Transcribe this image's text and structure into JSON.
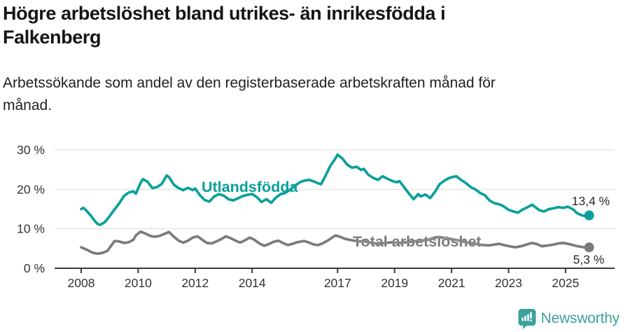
{
  "header": {
    "title": "Högre arbetslöshet bland utrikes- än inrikesfödda i\nFalkenberg",
    "subtitle": "Arbetssökande som andel av den registerbaserade arbetskraften månad för\nmånad."
  },
  "branding": {
    "logo_text": "Newsworthy",
    "logo_color": "#3ba29c"
  },
  "chart_data": {
    "type": "line",
    "title": "Högre arbetslöshet bland utrikes- än inrikesfödda i Falkenberg",
    "subtitle": "Arbetssökande som andel av den registerbaserade arbetskraften månad för månad.",
    "x_unit": "decimal_year_monthly",
    "xlim": [
      2007.1,
      2026.7
    ],
    "ylim": [
      0,
      30
    ],
    "grid": "horizontal",
    "legend_position": "inline-labels",
    "yticks": [
      {
        "value": 0,
        "label": "0 %"
      },
      {
        "value": 10,
        "label": "10 %"
      },
      {
        "value": 20,
        "label": "20 %"
      },
      {
        "value": 30,
        "label": "30 %"
      }
    ],
    "xticks": [
      {
        "value": 2008,
        "label": "2008"
      },
      {
        "value": 2010,
        "label": "2010"
      },
      {
        "value": 2012,
        "label": "2012"
      },
      {
        "value": 2014,
        "label": "2014"
      },
      {
        "value": 2017,
        "label": "2017"
      },
      {
        "value": 2019,
        "label": "2019"
      },
      {
        "value": 2021,
        "label": "2021"
      },
      {
        "value": 2023,
        "label": "2023"
      },
      {
        "value": 2025,
        "label": "2025"
      }
    ],
    "axis_color": "#3b3b3b",
    "grid_color": "#dcdcdc",
    "tick_text_color": "#333333",
    "annotation_text_color": "#2a2a2a",
    "series": [
      {
        "name": "Utlandsfödda",
        "color": "#0ba09a",
        "end_label": "13,4 %",
        "last_value": 13.4,
        "points": [
          [
            2008.0,
            15.0
          ],
          [
            2008.08,
            15.3
          ],
          [
            2008.17,
            14.7
          ],
          [
            2008.33,
            13.4
          ],
          [
            2008.5,
            11.8
          ],
          [
            2008.58,
            11.2
          ],
          [
            2008.67,
            11.0
          ],
          [
            2008.83,
            11.7
          ],
          [
            2009.0,
            13.2
          ],
          [
            2009.17,
            14.9
          ],
          [
            2009.33,
            16.4
          ],
          [
            2009.5,
            18.3
          ],
          [
            2009.67,
            19.2
          ],
          [
            2009.83,
            19.5
          ],
          [
            2009.92,
            18.9
          ],
          [
            2010.08,
            21.6
          ],
          [
            2010.17,
            22.6
          ],
          [
            2010.33,
            21.9
          ],
          [
            2010.5,
            20.3
          ],
          [
            2010.67,
            20.6
          ],
          [
            2010.83,
            21.4
          ],
          [
            2011.0,
            23.5
          ],
          [
            2011.08,
            23.1
          ],
          [
            2011.25,
            21.2
          ],
          [
            2011.42,
            20.3
          ],
          [
            2011.58,
            19.8
          ],
          [
            2011.75,
            20.4
          ],
          [
            2011.92,
            19.8
          ],
          [
            2012.0,
            20.2
          ],
          [
            2012.17,
            18.5
          ],
          [
            2012.33,
            17.3
          ],
          [
            2012.5,
            16.9
          ],
          [
            2012.67,
            18.2
          ],
          [
            2012.83,
            18.8
          ],
          [
            2013.0,
            18.4
          ],
          [
            2013.17,
            17.5
          ],
          [
            2013.33,
            17.2
          ],
          [
            2013.5,
            17.7
          ],
          [
            2013.67,
            18.3
          ],
          [
            2013.83,
            18.6
          ],
          [
            2014.0,
            18.8
          ],
          [
            2014.17,
            18.0
          ],
          [
            2014.33,
            16.8
          ],
          [
            2014.5,
            17.5
          ],
          [
            2014.67,
            16.6
          ],
          [
            2014.83,
            17.9
          ],
          [
            2015.0,
            18.8
          ],
          [
            2015.17,
            19.1
          ],
          [
            2015.33,
            19.9
          ],
          [
            2015.5,
            20.9
          ],
          [
            2015.67,
            21.8
          ],
          [
            2015.83,
            22.2
          ],
          [
            2016.0,
            22.4
          ],
          [
            2016.17,
            22.0
          ],
          [
            2016.33,
            21.5
          ],
          [
            2016.42,
            21.3
          ],
          [
            2016.58,
            23.5
          ],
          [
            2016.75,
            26.0
          ],
          [
            2016.92,
            27.8
          ],
          [
            2017.0,
            28.8
          ],
          [
            2017.17,
            27.8
          ],
          [
            2017.33,
            26.3
          ],
          [
            2017.5,
            25.5
          ],
          [
            2017.67,
            25.7
          ],
          [
            2017.83,
            24.9
          ],
          [
            2017.92,
            25.2
          ],
          [
            2018.08,
            23.7
          ],
          [
            2018.25,
            22.9
          ],
          [
            2018.42,
            22.4
          ],
          [
            2018.58,
            23.3
          ],
          [
            2018.75,
            22.7
          ],
          [
            2018.92,
            22.1
          ],
          [
            2019.08,
            21.8
          ],
          [
            2019.17,
            22.1
          ],
          [
            2019.33,
            20.6
          ],
          [
            2019.5,
            19.0
          ],
          [
            2019.67,
            17.5
          ],
          [
            2019.83,
            18.8
          ],
          [
            2019.92,
            18.2
          ],
          [
            2020.08,
            18.7
          ],
          [
            2020.25,
            17.8
          ],
          [
            2020.42,
            19.4
          ],
          [
            2020.58,
            21.3
          ],
          [
            2020.75,
            22.2
          ],
          [
            2020.92,
            22.9
          ],
          [
            2021.08,
            23.2
          ],
          [
            2021.17,
            23.3
          ],
          [
            2021.33,
            22.4
          ],
          [
            2021.5,
            21.6
          ],
          [
            2021.67,
            20.6
          ],
          [
            2021.83,
            20.0
          ],
          [
            2022.0,
            19.1
          ],
          [
            2022.17,
            18.5
          ],
          [
            2022.33,
            17.2
          ],
          [
            2022.5,
            16.5
          ],
          [
            2022.67,
            16.2
          ],
          [
            2022.83,
            15.7
          ],
          [
            2023.0,
            14.8
          ],
          [
            2023.17,
            14.4
          ],
          [
            2023.33,
            14.1
          ],
          [
            2023.5,
            14.9
          ],
          [
            2023.67,
            15.5
          ],
          [
            2023.83,
            16.1
          ],
          [
            2023.92,
            15.6
          ],
          [
            2024.08,
            14.7
          ],
          [
            2024.25,
            14.4
          ],
          [
            2024.42,
            15.0
          ],
          [
            2024.58,
            15.2
          ],
          [
            2024.75,
            15.5
          ],
          [
            2024.92,
            15.3
          ],
          [
            2025.08,
            15.6
          ],
          [
            2025.25,
            15.0
          ],
          [
            2025.42,
            13.9
          ],
          [
            2025.58,
            13.4
          ],
          [
            2025.75,
            13.1
          ],
          [
            2025.83,
            13.4
          ]
        ]
      },
      {
        "name": "Total arbetslöshet",
        "color": "#7b7b7b",
        "end_label": "5,3 %",
        "last_value": 5.3,
        "points": [
          [
            2008.0,
            5.3
          ],
          [
            2008.17,
            4.8
          ],
          [
            2008.33,
            4.2
          ],
          [
            2008.42,
            3.9
          ],
          [
            2008.58,
            3.7
          ],
          [
            2008.75,
            3.9
          ],
          [
            2008.92,
            4.4
          ],
          [
            2009.08,
            6.0
          ],
          [
            2009.17,
            6.9
          ],
          [
            2009.33,
            6.8
          ],
          [
            2009.5,
            6.4
          ],
          [
            2009.67,
            6.6
          ],
          [
            2009.83,
            7.2
          ],
          [
            2009.92,
            8.3
          ],
          [
            2010.08,
            9.3
          ],
          [
            2010.25,
            8.8
          ],
          [
            2010.42,
            8.2
          ],
          [
            2010.58,
            8.0
          ],
          [
            2010.75,
            8.2
          ],
          [
            2010.92,
            8.7
          ],
          [
            2011.08,
            9.2
          ],
          [
            2011.25,
            8.0
          ],
          [
            2011.42,
            7.0
          ],
          [
            2011.58,
            6.5
          ],
          [
            2011.75,
            7.0
          ],
          [
            2011.92,
            7.8
          ],
          [
            2012.08,
            8.1
          ],
          [
            2012.25,
            7.2
          ],
          [
            2012.42,
            6.4
          ],
          [
            2012.58,
            6.3
          ],
          [
            2012.75,
            6.8
          ],
          [
            2012.92,
            7.4
          ],
          [
            2013.08,
            8.1
          ],
          [
            2013.25,
            7.6
          ],
          [
            2013.42,
            7.0
          ],
          [
            2013.58,
            6.5
          ],
          [
            2013.75,
            7.1
          ],
          [
            2013.92,
            7.8
          ],
          [
            2014.08,
            7.2
          ],
          [
            2014.25,
            6.3
          ],
          [
            2014.42,
            5.7
          ],
          [
            2014.58,
            6.1
          ],
          [
            2014.75,
            6.7
          ],
          [
            2014.92,
            7.0
          ],
          [
            2015.08,
            6.4
          ],
          [
            2015.25,
            5.9
          ],
          [
            2015.42,
            6.2
          ],
          [
            2015.58,
            6.6
          ],
          [
            2015.83,
            6.9
          ],
          [
            2016.0,
            6.5
          ],
          [
            2016.17,
            6.0
          ],
          [
            2016.33,
            5.9
          ],
          [
            2016.5,
            6.4
          ],
          [
            2016.67,
            7.1
          ],
          [
            2016.83,
            7.9
          ],
          [
            2016.92,
            8.3
          ],
          [
            2017.08,
            8.0
          ],
          [
            2017.25,
            7.5
          ],
          [
            2017.42,
            7.2
          ],
          [
            2017.58,
            7.0
          ],
          [
            2017.75,
            6.8
          ],
          [
            2017.92,
            6.9
          ],
          [
            2018.17,
            6.5
          ],
          [
            2018.42,
            6.2
          ],
          [
            2018.67,
            6.4
          ],
          [
            2018.92,
            6.6
          ],
          [
            2019.17,
            6.4
          ],
          [
            2019.42,
            6.6
          ],
          [
            2019.67,
            6.8
          ],
          [
            2019.92,
            7.0
          ],
          [
            2020.17,
            7.2
          ],
          [
            2020.42,
            7.8
          ],
          [
            2020.58,
            7.9
          ],
          [
            2020.83,
            7.6
          ],
          [
            2021.08,
            7.3
          ],
          [
            2021.33,
            6.9
          ],
          [
            2021.58,
            6.5
          ],
          [
            2021.83,
            6.2
          ],
          [
            2022.08,
            5.9
          ],
          [
            2022.33,
            5.8
          ],
          [
            2022.5,
            6.0
          ],
          [
            2022.67,
            6.2
          ],
          [
            2022.83,
            5.9
          ],
          [
            2023.08,
            5.5
          ],
          [
            2023.25,
            5.3
          ],
          [
            2023.5,
            5.7
          ],
          [
            2023.67,
            6.1
          ],
          [
            2023.83,
            6.4
          ],
          [
            2024.0,
            6.1
          ],
          [
            2024.17,
            5.6
          ],
          [
            2024.42,
            5.8
          ],
          [
            2024.58,
            6.0
          ],
          [
            2024.75,
            6.3
          ],
          [
            2024.92,
            6.4
          ],
          [
            2025.08,
            6.2
          ],
          [
            2025.25,
            5.9
          ],
          [
            2025.42,
            5.6
          ],
          [
            2025.58,
            5.4
          ],
          [
            2025.75,
            5.2
          ],
          [
            2025.83,
            5.3
          ]
        ]
      }
    ]
  }
}
